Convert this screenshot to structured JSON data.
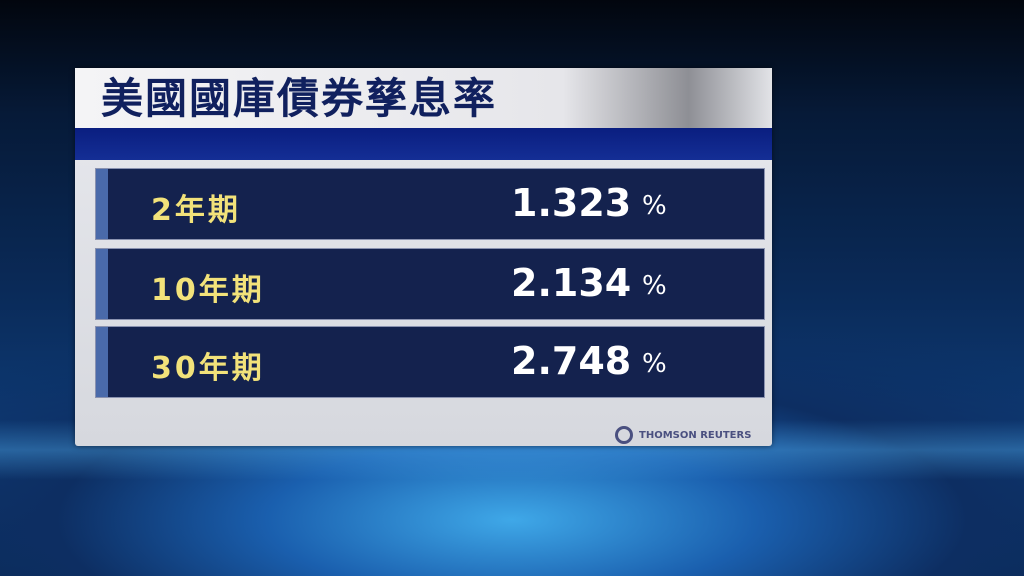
{
  "title": "美國國庫債券孳息率",
  "rows": [
    {
      "label": "2年期",
      "value": "1.323",
      "unit": "%"
    },
    {
      "label": "10年期",
      "value": "2.134",
      "unit": "%"
    },
    {
      "label": "30年期",
      "value": "2.748",
      "unit": "%"
    }
  ],
  "source_logo": "THOMSON REUTERS",
  "colors": {
    "title": "#10205e",
    "label": "#f2e27a",
    "row_bg": "#14224e",
    "band": "#0a1e80"
  }
}
